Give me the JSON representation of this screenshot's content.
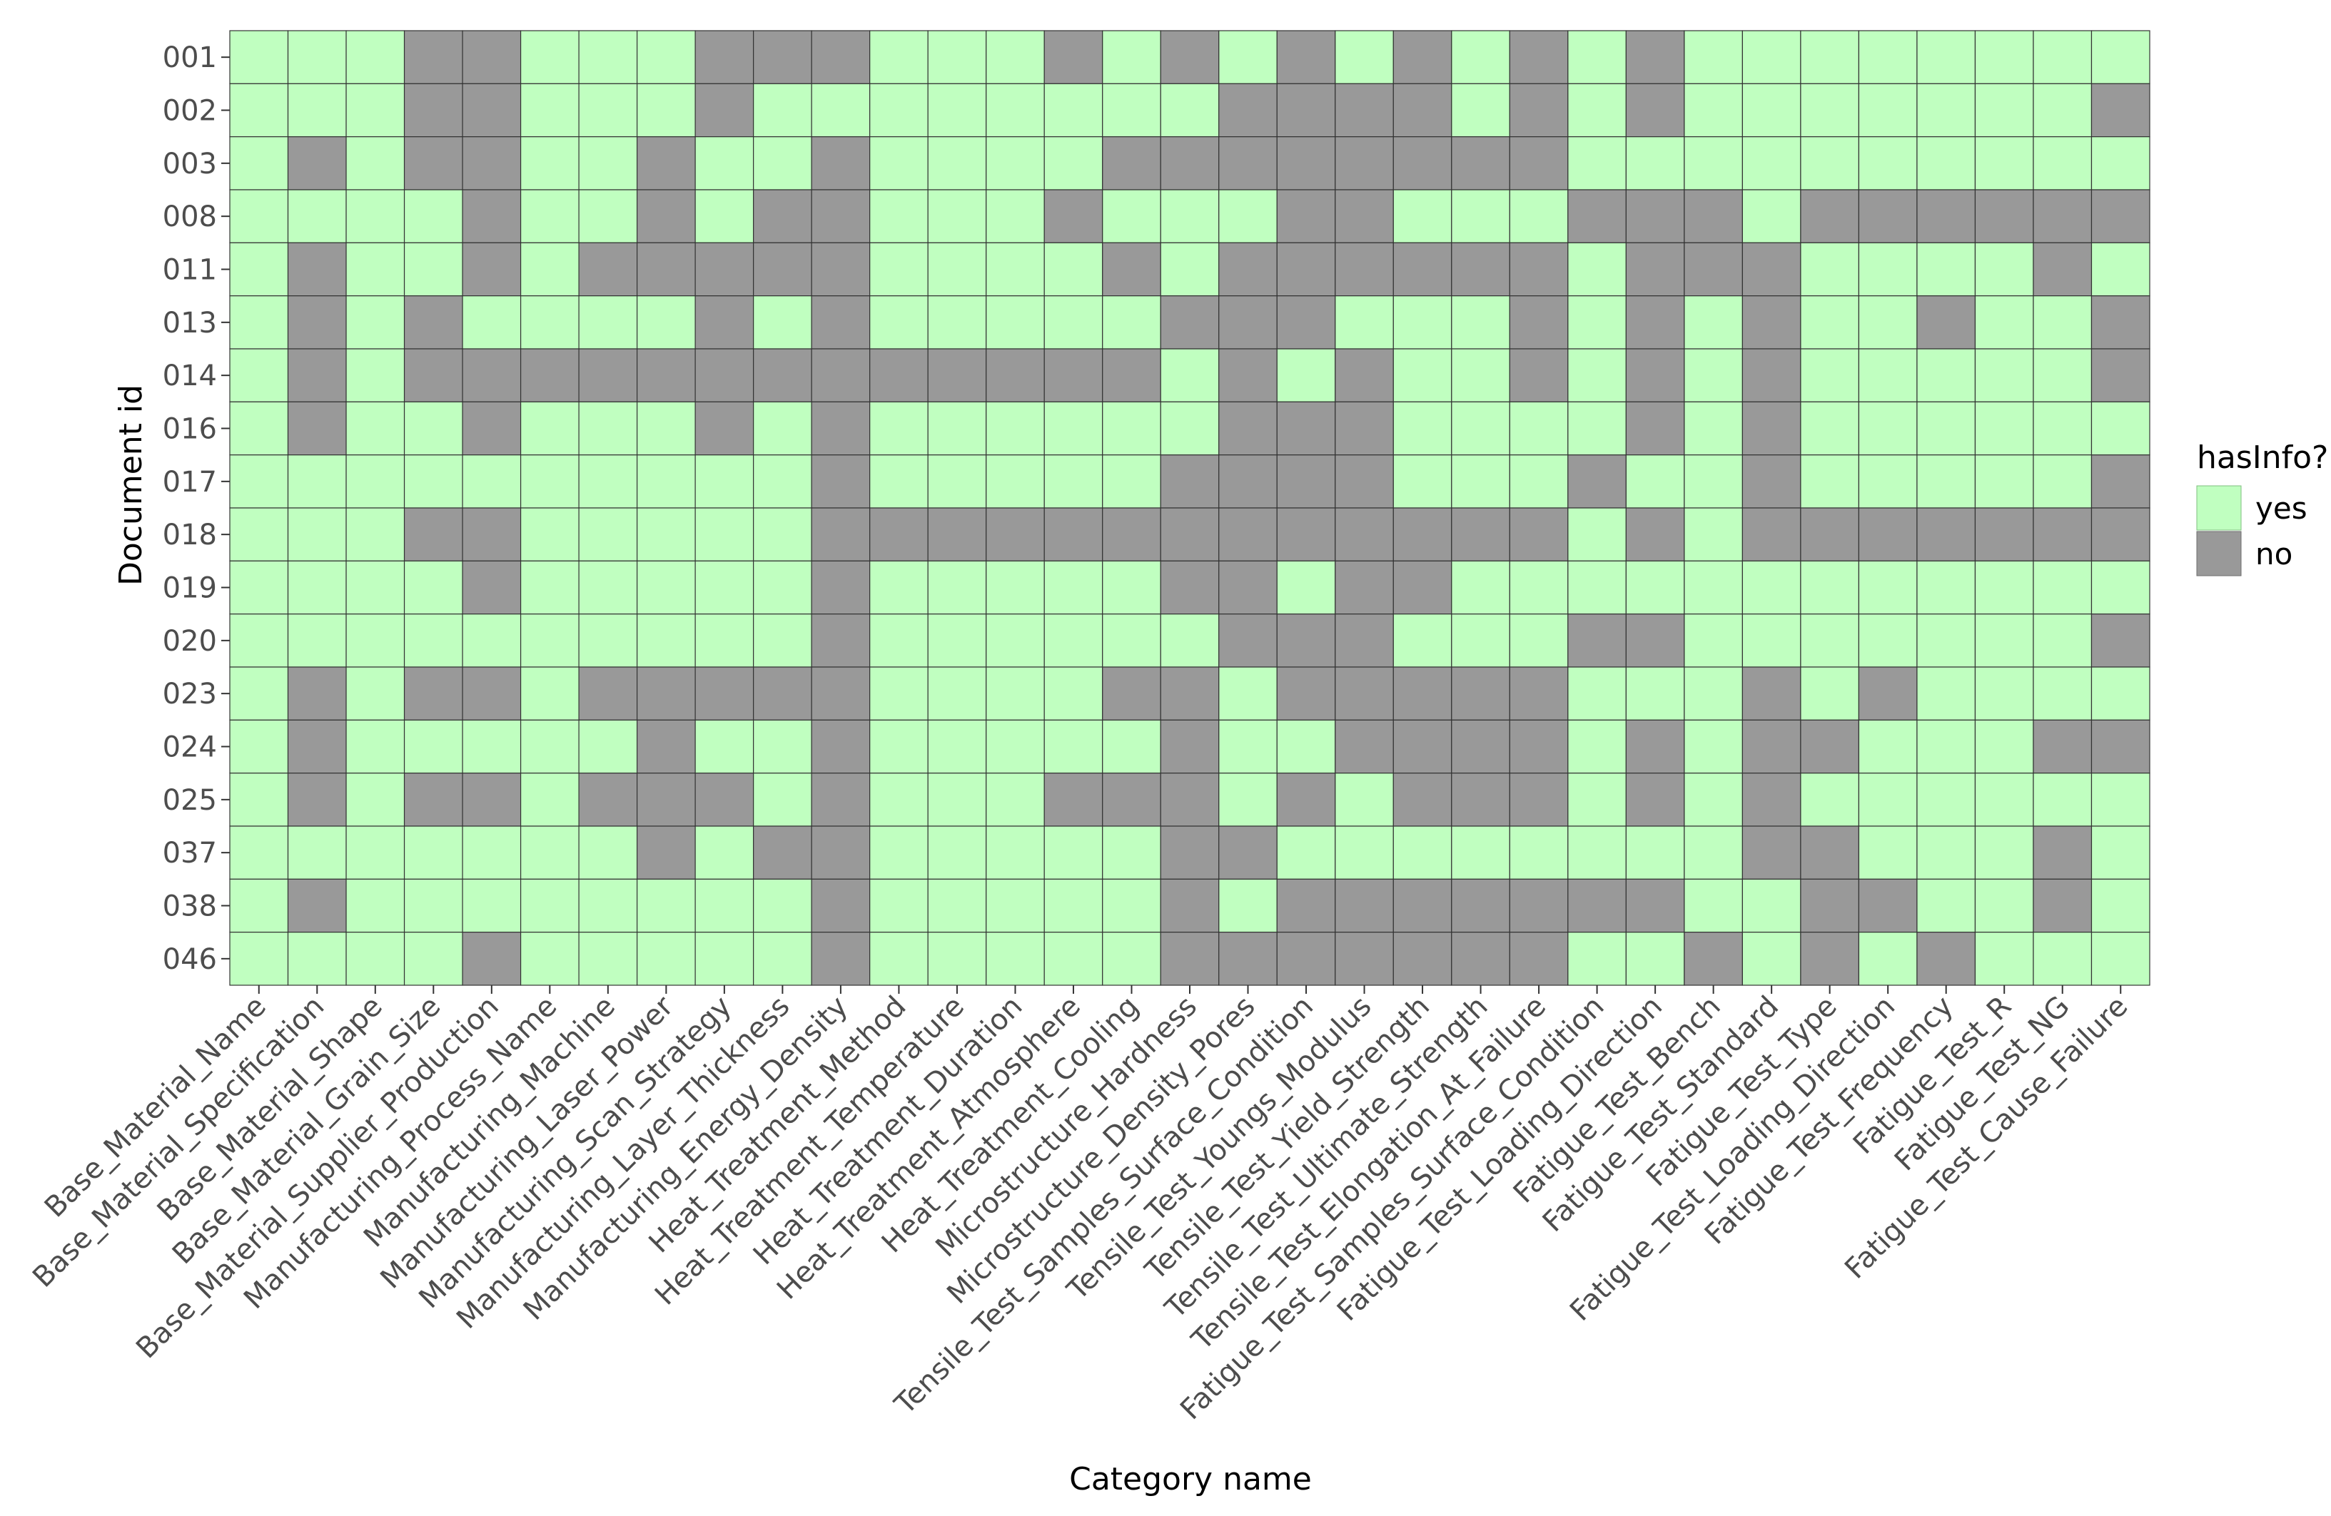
{
  "chart_data": {
    "type": "heatmap",
    "xlabel": "Category name",
    "ylabel": "Document id",
    "legend": {
      "title": "hasInfo?",
      "placement": "right",
      "entries": [
        {
          "value": 1,
          "label": "yes",
          "color": "#c0ffc0"
        },
        {
          "value": 0,
          "label": "no",
          "color": "#999999"
        }
      ]
    },
    "categories": [
      "Base_Material_Name",
      "Base_Material_Specification",
      "Base_Material_Shape",
      "Base_Material_Grain_Size",
      "Base_Material_Supplier_Production",
      "Manufacturing_Process_Name",
      "Manufacturing_Machine",
      "Manufacturing_Laser_Power",
      "Manufacturing_Scan_Strategy",
      "Manufacturing_Layer_Thickness",
      "Manufacturing_Energy_Density",
      "Heat_Treatment_Method",
      "Heat_Treatment_Temperature",
      "Heat_Treatment_Duration",
      "Heat_Treatment_Atmosphere",
      "Heat_Treatment_Cooling",
      "Microstructure_Hardness",
      "Microstructure_Density_Pores",
      "Tensile_Test_Samples_Surface_Condition",
      "Tensile_Test_Youngs_Modulus",
      "Tensile_Test_Yield_Strength",
      "Tensile_Test_Ultimate_Strength",
      "Tensile_Test_Elongation_At_Failure",
      "Fatigue_Test_Samples_Surface_Condition",
      "Fatigue_Test_Loading_Direction",
      "Fatigue_Test_Bench",
      "Fatigue_Test_Standard",
      "Fatigue_Test_Type",
      "Fatigue_Test_Loading_Direction",
      "Fatigue_Test_Frequency",
      "Fatigue_Test_R",
      "Fatigue_Test_NG",
      "Fatigue_Test_Cause_Failure"
    ],
    "documents": [
      "001",
      "002",
      "003",
      "008",
      "011",
      "013",
      "014",
      "016",
      "017",
      "018",
      "019",
      "020",
      "023",
      "024",
      "025",
      "037",
      "038",
      "046"
    ],
    "matrix": [
      [
        1,
        1,
        1,
        0,
        0,
        1,
        1,
        1,
        0,
        0,
        0,
        1,
        1,
        1,
        0,
        1,
        0,
        1,
        0,
        1,
        0,
        1,
        0,
        1,
        0,
        1,
        1,
        1,
        1,
        1,
        1,
        1,
        1
      ],
      [
        1,
        1,
        1,
        0,
        0,
        1,
        1,
        1,
        0,
        1,
        1,
        1,
        1,
        1,
        1,
        1,
        1,
        0,
        0,
        0,
        0,
        1,
        0,
        1,
        0,
        1,
        1,
        1,
        1,
        1,
        1,
        1,
        0
      ],
      [
        1,
        0,
        1,
        0,
        0,
        1,
        1,
        0,
        1,
        1,
        0,
        1,
        1,
        1,
        1,
        0,
        0,
        0,
        0,
        0,
        0,
        0,
        0,
        1,
        1,
        1,
        1,
        1,
        1,
        1,
        1,
        1,
        1
      ],
      [
        1,
        1,
        1,
        1,
        0,
        1,
        1,
        0,
        1,
        0,
        0,
        1,
        1,
        1,
        0,
        1,
        1,
        1,
        0,
        0,
        1,
        1,
        1,
        0,
        0,
        0,
        1,
        0,
        0,
        0,
        0,
        0,
        0
      ],
      [
        1,
        0,
        1,
        1,
        0,
        1,
        0,
        0,
        0,
        0,
        0,
        1,
        1,
        1,
        1,
        0,
        1,
        0,
        0,
        0,
        0,
        0,
        0,
        1,
        0,
        0,
        0,
        1,
        1,
        1,
        1,
        0,
        1
      ],
      [
        1,
        0,
        1,
        0,
        1,
        1,
        1,
        1,
        0,
        1,
        0,
        1,
        1,
        1,
        1,
        1,
        0,
        0,
        0,
        1,
        1,
        1,
        0,
        1,
        0,
        1,
        0,
        1,
        1,
        0,
        1,
        1,
        0
      ],
      [
        1,
        0,
        1,
        0,
        0,
        0,
        0,
        0,
        0,
        0,
        0,
        0,
        0,
        0,
        0,
        0,
        1,
        0,
        1,
        0,
        1,
        1,
        0,
        1,
        0,
        1,
        0,
        1,
        1,
        1,
        1,
        1,
        0
      ],
      [
        1,
        0,
        1,
        1,
        0,
        1,
        1,
        1,
        0,
        1,
        0,
        1,
        1,
        1,
        1,
        1,
        1,
        0,
        0,
        0,
        1,
        1,
        1,
        1,
        0,
        1,
        0,
        1,
        1,
        1,
        1,
        1,
        1
      ],
      [
        1,
        1,
        1,
        1,
        1,
        1,
        1,
        1,
        1,
        1,
        0,
        1,
        1,
        1,
        1,
        1,
        0,
        0,
        0,
        0,
        1,
        1,
        1,
        0,
        1,
        1,
        0,
        1,
        1,
        1,
        1,
        1,
        0
      ],
      [
        1,
        1,
        1,
        0,
        0,
        1,
        1,
        1,
        1,
        1,
        0,
        0,
        0,
        0,
        0,
        0,
        0,
        0,
        0,
        0,
        0,
        0,
        0,
        1,
        0,
        1,
        0,
        0,
        0,
        0,
        0,
        0,
        0
      ],
      [
        1,
        1,
        1,
        1,
        0,
        1,
        1,
        1,
        1,
        1,
        0,
        1,
        1,
        1,
        1,
        1,
        0,
        0,
        1,
        0,
        0,
        1,
        1,
        1,
        1,
        1,
        1,
        1,
        1,
        1,
        1,
        1,
        1
      ],
      [
        1,
        1,
        1,
        1,
        1,
        1,
        1,
        1,
        1,
        1,
        0,
        1,
        1,
        1,
        1,
        1,
        1,
        0,
        0,
        0,
        1,
        1,
        1,
        0,
        0,
        1,
        1,
        1,
        1,
        1,
        1,
        1,
        0
      ],
      [
        1,
        0,
        1,
        0,
        0,
        1,
        0,
        0,
        0,
        0,
        0,
        1,
        1,
        1,
        1,
        0,
        0,
        1,
        0,
        0,
        0,
        0,
        0,
        1,
        1,
        1,
        0,
        1,
        0,
        1,
        1,
        1,
        1
      ],
      [
        1,
        0,
        1,
        1,
        1,
        1,
        1,
        0,
        1,
        1,
        0,
        1,
        1,
        1,
        1,
        1,
        0,
        1,
        1,
        0,
        0,
        0,
        0,
        1,
        0,
        1,
        0,
        0,
        1,
        1,
        1,
        0,
        0
      ],
      [
        1,
        0,
        1,
        0,
        0,
        1,
        0,
        0,
        0,
        1,
        0,
        1,
        1,
        1,
        0,
        0,
        0,
        1,
        0,
        1,
        0,
        0,
        0,
        1,
        0,
        1,
        0,
        1,
        1,
        1,
        1,
        1,
        1
      ],
      [
        1,
        1,
        1,
        1,
        1,
        1,
        1,
        0,
        1,
        0,
        0,
        1,
        1,
        1,
        1,
        1,
        0,
        0,
        1,
        1,
        1,
        1,
        1,
        1,
        1,
        1,
        0,
        0,
        1,
        1,
        1,
        0,
        1
      ],
      [
        1,
        0,
        1,
        1,
        1,
        1,
        1,
        1,
        1,
        1,
        0,
        1,
        1,
        1,
        1,
        1,
        0,
        1,
        0,
        0,
        0,
        0,
        0,
        0,
        0,
        1,
        1,
        0,
        0,
        1,
        1,
        0,
        1
      ],
      [
        1,
        1,
        1,
        1,
        0,
        1,
        1,
        1,
        1,
        1,
        0,
        1,
        1,
        1,
        1,
        1,
        0,
        0,
        0,
        0,
        0,
        0,
        0,
        1,
        1,
        0,
        1,
        0,
        1,
        0,
        1,
        1,
        1
      ]
    ]
  }
}
